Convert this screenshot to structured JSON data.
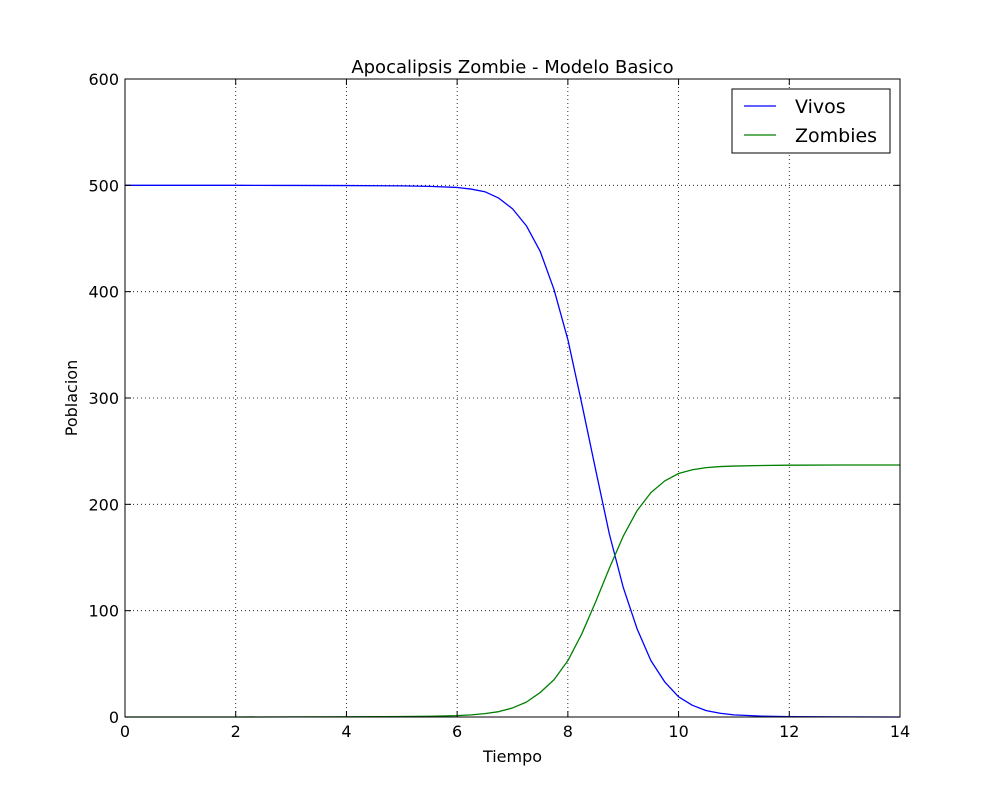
{
  "chart_data": {
    "type": "line",
    "title": "Apocalipsis Zombie - Modelo Basico",
    "xlabel": "Tiempo",
    "ylabel": "Poblacion",
    "xlim": [
      0,
      14
    ],
    "ylim": [
      0,
      600
    ],
    "xticks": [
      0,
      2,
      4,
      6,
      8,
      10,
      12,
      14
    ],
    "yticks": [
      0,
      100,
      200,
      300,
      400,
      500,
      600
    ],
    "xtick_labels": [
      "0",
      "2",
      "4",
      "6",
      "8",
      "10",
      "12",
      "14"
    ],
    "ytick_labels": [
      "0",
      "100",
      "200",
      "300",
      "400",
      "500",
      "600"
    ],
    "grid": true,
    "legend_position": "top-right",
    "series": [
      {
        "name": "Vivos",
        "color": "#0000ff",
        "x": [
          0,
          1,
          2,
          3,
          4,
          5,
          5.5,
          6,
          6.25,
          6.5,
          6.75,
          7,
          7.25,
          7.5,
          7.75,
          8,
          8.25,
          8.5,
          8.75,
          9,
          9.25,
          9.5,
          9.75,
          10,
          10.25,
          10.5,
          10.75,
          11,
          11.5,
          12,
          13,
          14
        ],
        "y": [
          500,
          500,
          500,
          499.9,
          499.8,
          499.5,
          499,
          498,
          496.5,
          494,
          488,
          478,
          462,
          438,
          402,
          355,
          295,
          233,
          172,
          122,
          83,
          53,
          33,
          19,
          11,
          6,
          3.5,
          2,
          0.8,
          0.3,
          0.1,
          0
        ]
      },
      {
        "name": "Zombies",
        "color": "#008000",
        "x": [
          0,
          1,
          2,
          3,
          4,
          5,
          5.5,
          6,
          6.25,
          6.5,
          6.75,
          7,
          7.25,
          7.5,
          7.75,
          8,
          8.25,
          8.5,
          8.75,
          9,
          9.25,
          9.5,
          9.75,
          10,
          10.25,
          10.5,
          10.75,
          11,
          11.5,
          12,
          13,
          14
        ],
        "y": [
          0,
          0,
          0,
          0.1,
          0.2,
          0.4,
          0.7,
          1.3,
          2,
          3.2,
          5,
          8.5,
          14,
          23,
          35,
          53,
          78,
          108,
          140,
          170,
          194,
          211,
          222,
          229,
          232.5,
          234.5,
          235.5,
          236,
          236.5,
          236.8,
          237,
          237
        ]
      }
    ]
  }
}
